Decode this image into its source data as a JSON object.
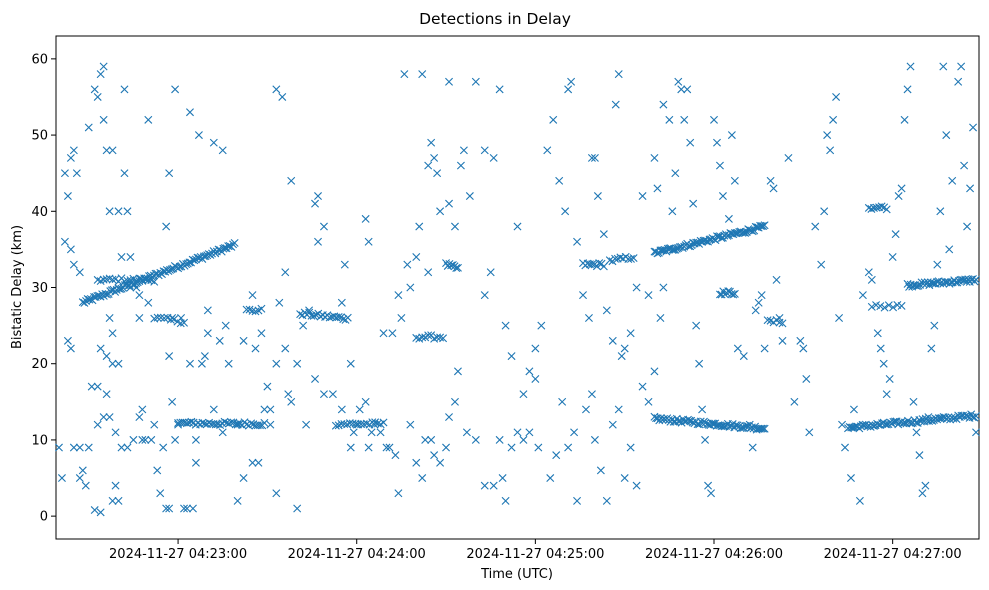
{
  "chart_data": {
    "type": "scatter",
    "title": "Detections in Delay",
    "xlabel": "Time (UTC)",
    "ylabel": "Bistatic Delay (km)",
    "marker": "x",
    "color": "#1f77b4",
    "grid": false,
    "xlim_seconds": [
      -41,
      269
    ],
    "ylim": [
      -3,
      63
    ],
    "x_ticks": [
      {
        "seconds": 0,
        "label": "2024-11-27 04:23:00"
      },
      {
        "seconds": 60,
        "label": "2024-11-27 04:24:00"
      },
      {
        "seconds": 120,
        "label": "2024-11-27 04:25:00"
      },
      {
        "seconds": 180,
        "label": "2024-11-27 04:26:00"
      },
      {
        "seconds": 240,
        "label": "2024-11-27 04:27:00"
      }
    ],
    "y_ticks": [
      0,
      10,
      20,
      30,
      40,
      50,
      60
    ],
    "tracks": [
      {
        "t0": -32,
        "t1": 19,
        "d0": 28,
        "d1": 35.6,
        "n": 95
      },
      {
        "t0": -27,
        "t1": -8,
        "d0": 31,
        "d1": 31,
        "n": 20
      },
      {
        "t0": -8,
        "t1": 2,
        "d0": 26,
        "d1": 25.5,
        "n": 10
      },
      {
        "t0": 0,
        "t1": 29,
        "d0": 12.2,
        "d1": 12.1,
        "n": 40
      },
      {
        "t0": 23,
        "t1": 28,
        "d0": 27,
        "d1": 27,
        "n": 6
      },
      {
        "t0": 41,
        "t1": 57,
        "d0": 26.6,
        "d1": 25.9,
        "n": 22
      },
      {
        "t0": 53,
        "t1": 69,
        "d0": 12.1,
        "d1": 12.1,
        "n": 18
      },
      {
        "t0": 80,
        "t1": 89,
        "d0": 23.5,
        "d1": 23.5,
        "n": 10
      },
      {
        "t0": 90,
        "t1": 94,
        "d0": 33,
        "d1": 32.5,
        "n": 8
      },
      {
        "t0": 136,
        "t1": 143,
        "d0": 33,
        "d1": 33,
        "n": 10
      },
      {
        "t0": 145,
        "t1": 153,
        "d0": 33.5,
        "d1": 34,
        "n": 10
      },
      {
        "t0": 160,
        "t1": 197,
        "d0": 34.5,
        "d1": 38,
        "n": 75
      },
      {
        "t0": 160,
        "t1": 197,
        "d0": 12.8,
        "d1": 11.5,
        "n": 70
      },
      {
        "t0": 182,
        "t1": 187,
        "d0": 29.3,
        "d1": 29.3,
        "n": 10
      },
      {
        "t0": 198,
        "t1": 203,
        "d0": 25.5,
        "d1": 25.5,
        "n": 6
      },
      {
        "t0": 225,
        "t1": 268,
        "d0": 11.6,
        "d1": 13.2,
        "n": 80
      },
      {
        "t0": 232,
        "t1": 238,
        "d0": 40.5,
        "d1": 40.5,
        "n": 8
      },
      {
        "t0": 245,
        "t1": 268,
        "d0": 30.3,
        "d1": 31,
        "n": 45
      },
      {
        "t0": 233,
        "t1": 243,
        "d0": 27.5,
        "d1": 27.5,
        "n": 8
      }
    ],
    "points": [
      [
        -38,
        36
      ],
      [
        -38,
        45
      ],
      [
        -36,
        47
      ],
      [
        -35,
        48
      ],
      [
        -34,
        45
      ],
      [
        -37,
        42
      ],
      [
        -36,
        35
      ],
      [
        -35,
        33
      ],
      [
        -33,
        32
      ],
      [
        -30,
        51
      ],
      [
        -28,
        56
      ],
      [
        -26,
        58
      ],
      [
        -25,
        59
      ],
      [
        -27,
        55
      ],
      [
        -25,
        52
      ],
      [
        -24,
        48
      ],
      [
        -22,
        48
      ],
      [
        -23,
        40
      ],
      [
        -20,
        40
      ],
      [
        -17,
        40
      ],
      [
        -18,
        45
      ],
      [
        -18,
        56
      ],
      [
        -10,
        52
      ],
      [
        4,
        53
      ],
      [
        7,
        50
      ],
      [
        12,
        49
      ],
      [
        15,
        48
      ],
      [
        -1,
        56
      ],
      [
        -3,
        45
      ],
      [
        -4,
        38
      ],
      [
        -37,
        23
      ],
      [
        -36,
        22
      ],
      [
        -35,
        9
      ],
      [
        -33,
        9
      ],
      [
        -31,
        4
      ],
      [
        -29,
        17
      ],
      [
        -27,
        17
      ],
      [
        -26,
        22
      ],
      [
        -24,
        21
      ],
      [
        -22,
        24
      ],
      [
        -22,
        20
      ],
      [
        -20,
        20
      ],
      [
        -24,
        16
      ],
      [
        -23,
        13
      ],
      [
        -21,
        11
      ],
      [
        -19,
        9
      ],
      [
        -17,
        9
      ],
      [
        -21,
        4
      ],
      [
        -22,
        2
      ],
      [
        -20,
        2
      ],
      [
        -28,
        0.8
      ],
      [
        -26,
        0.5
      ],
      [
        -13,
        13
      ],
      [
        -12,
        10
      ],
      [
        -11,
        10
      ],
      [
        -15,
        10
      ],
      [
        -8,
        12
      ],
      [
        -6,
        3
      ],
      [
        -4,
        1
      ],
      [
        -3,
        1
      ],
      [
        -2,
        15
      ],
      [
        -1,
        10
      ],
      [
        2,
        1
      ],
      [
        3,
        1
      ],
      [
        5,
        1
      ],
      [
        6,
        7
      ],
      [
        10,
        27
      ],
      [
        10,
        24
      ],
      [
        16,
        25
      ],
      [
        14,
        23
      ],
      [
        8,
        20
      ],
      [
        4,
        20
      ],
      [
        -14,
        30
      ],
      [
        -16,
        30
      ],
      [
        -13,
        29
      ],
      [
        -10,
        28
      ],
      [
        20,
        12
      ],
      [
        25,
        29
      ],
      [
        28,
        24
      ],
      [
        30,
        17
      ],
      [
        31,
        14
      ],
      [
        27,
        7
      ],
      [
        25,
        7
      ],
      [
        22,
        5
      ],
      [
        20,
        2
      ],
      [
        36,
        22
      ],
      [
        37,
        16
      ],
      [
        33,
        3
      ],
      [
        40,
        1
      ],
      [
        35,
        55
      ],
      [
        33,
        56
      ],
      [
        38,
        44
      ],
      [
        46,
        41
      ],
      [
        47,
        42
      ],
      [
        43,
        12
      ],
      [
        47,
        36
      ],
      [
        49,
        38
      ],
      [
        56,
        33
      ],
      [
        55,
        28
      ],
      [
        58,
        20
      ],
      [
        61,
        14
      ],
      [
        63,
        39
      ],
      [
        64,
        36
      ],
      [
        59,
        11
      ],
      [
        64,
        9
      ],
      [
        65,
        11
      ],
      [
        70,
        9
      ],
      [
        69,
        24
      ],
      [
        72,
        24
      ],
      [
        74,
        29
      ],
      [
        78,
        30
      ],
      [
        75,
        26
      ],
      [
        77,
        33
      ],
      [
        81,
        38
      ],
      [
        76,
        58
      ],
      [
        82,
        58
      ],
      [
        80,
        34
      ],
      [
        84,
        32
      ],
      [
        84,
        46
      ],
      [
        86,
        47
      ],
      [
        85,
        49
      ],
      [
        87,
        45
      ],
      [
        88,
        40
      ],
      [
        91,
        41
      ],
      [
        93,
        38
      ],
      [
        95,
        46
      ],
      [
        96,
        48
      ],
      [
        91,
        57
      ],
      [
        100,
        57
      ],
      [
        108,
        56
      ],
      [
        106,
        47
      ],
      [
        103,
        48
      ],
      [
        98,
        42
      ],
      [
        74,
        3
      ],
      [
        78,
        12
      ],
      [
        80,
        7
      ],
      [
        82,
        5
      ],
      [
        83,
        10
      ],
      [
        85,
        10
      ],
      [
        86,
        8
      ],
      [
        88,
        7
      ],
      [
        90,
        9
      ],
      [
        91,
        13
      ],
      [
        93,
        15
      ],
      [
        94,
        19
      ],
      [
        97,
        11
      ],
      [
        100,
        10
      ],
      [
        103,
        4
      ],
      [
        106,
        4
      ],
      [
        108,
        10
      ],
      [
        109,
        5
      ],
      [
        110,
        2
      ],
      [
        112,
        9
      ],
      [
        114,
        11
      ],
      [
        116,
        10
      ],
      [
        118,
        11
      ],
      [
        120,
        18
      ],
      [
        121,
        9
      ],
      [
        125,
        5
      ],
      [
        127,
        8
      ],
      [
        129,
        15
      ],
      [
        131,
        9
      ],
      [
        133,
        11
      ],
      [
        134,
        2
      ],
      [
        137,
        14
      ],
      [
        139,
        16
      ],
      [
        140,
        10
      ],
      [
        142,
        6
      ],
      [
        144,
        2
      ],
      [
        146,
        12
      ],
      [
        148,
        14
      ],
      [
        150,
        5
      ],
      [
        152,
        9
      ],
      [
        154,
        4
      ],
      [
        156,
        17
      ],
      [
        158,
        15
      ],
      [
        160,
        19
      ],
      [
        162,
        26
      ],
      [
        163,
        30
      ],
      [
        103,
        29
      ],
      [
        105,
        32
      ],
      [
        110,
        25
      ],
      [
        112,
        21
      ],
      [
        114,
        38
      ],
      [
        116,
        16
      ],
      [
        118,
        19
      ],
      [
        120,
        22
      ],
      [
        122,
        25
      ],
      [
        124,
        48
      ],
      [
        126,
        52
      ],
      [
        128,
        44
      ],
      [
        130,
        40
      ],
      [
        131,
        56
      ],
      [
        132,
        57
      ],
      [
        134,
        36
      ],
      [
        136,
        29
      ],
      [
        138,
        26
      ],
      [
        139,
        47
      ],
      [
        140,
        47
      ],
      [
        141,
        42
      ],
      [
        143,
        37
      ],
      [
        144,
        27
      ],
      [
        146,
        23
      ],
      [
        147,
        54
      ],
      [
        148,
        58
      ],
      [
        149,
        21
      ],
      [
        150,
        22
      ],
      [
        152,
        24
      ],
      [
        154,
        30
      ],
      [
        156,
        42
      ],
      [
        158,
        29
      ],
      [
        160,
        47
      ],
      [
        161,
        43
      ],
      [
        163,
        54
      ],
      [
        165,
        52
      ],
      [
        166,
        40
      ],
      [
        167,
        45
      ],
      [
        168,
        57
      ],
      [
        169,
        56
      ],
      [
        170,
        52
      ],
      [
        171,
        56
      ],
      [
        172,
        49
      ],
      [
        173,
        41
      ],
      [
        174,
        25
      ],
      [
        175,
        20
      ],
      [
        176,
        14
      ],
      [
        177,
        10
      ],
      [
        178,
        4
      ],
      [
        179,
        3
      ],
      [
        180,
        52
      ],
      [
        181,
        49
      ],
      [
        182,
        46
      ],
      [
        183,
        42
      ],
      [
        185,
        39
      ],
      [
        186,
        50
      ],
      [
        187,
        44
      ],
      [
        188,
        22
      ],
      [
        190,
        21
      ],
      [
        192,
        12
      ],
      [
        193,
        9
      ],
      [
        194,
        27
      ],
      [
        195,
        28
      ],
      [
        196,
        29
      ],
      [
        197,
        22
      ],
      [
        199,
        44
      ],
      [
        200,
        43
      ],
      [
        201,
        31
      ],
      [
        202,
        26
      ],
      [
        203,
        23
      ],
      [
        205,
        47
      ],
      [
        207,
        15
      ],
      [
        209,
        23
      ],
      [
        210,
        22
      ],
      [
        211,
        18
      ],
      [
        212,
        11
      ],
      [
        214,
        38
      ],
      [
        216,
        33
      ],
      [
        217,
        40
      ],
      [
        218,
        50
      ],
      [
        219,
        48
      ],
      [
        220,
        52
      ],
      [
        221,
        55
      ],
      [
        222,
        26
      ],
      [
        223,
        12
      ],
      [
        224,
        9
      ],
      [
        226,
        5
      ],
      [
        227,
        14
      ],
      [
        229,
        2
      ],
      [
        230,
        29
      ],
      [
        232,
        32
      ],
      [
        233,
        31
      ],
      [
        235,
        24
      ],
      [
        236,
        22
      ],
      [
        237,
        20
      ],
      [
        238,
        16
      ],
      [
        239,
        18
      ],
      [
        240,
        34
      ],
      [
        241,
        37
      ],
      [
        242,
        42
      ],
      [
        243,
        43
      ],
      [
        244,
        52
      ],
      [
        245,
        56
      ],
      [
        246,
        59
      ],
      [
        247,
        15
      ],
      [
        248,
        11
      ],
      [
        249,
        8
      ],
      [
        250,
        3
      ],
      [
        251,
        4
      ],
      [
        252,
        13
      ],
      [
        253,
        22
      ],
      [
        254,
        25
      ],
      [
        255,
        33
      ],
      [
        256,
        40
      ],
      [
        257,
        59
      ],
      [
        258,
        50
      ],
      [
        259,
        35
      ],
      [
        260,
        44
      ],
      [
        262,
        57
      ],
      [
        263,
        59
      ],
      [
        264,
        46
      ],
      [
        265,
        38
      ],
      [
        266,
        43
      ],
      [
        267,
        51
      ],
      [
        268,
        11
      ],
      [
        -40,
        9
      ],
      [
        -39,
        5
      ],
      [
        -33,
        5
      ],
      [
        -32,
        6
      ],
      [
        -30,
        9
      ],
      [
        -27,
        12
      ],
      [
        -25,
        13
      ],
      [
        -23,
        26
      ],
      [
        -19,
        34
      ],
      [
        -16,
        34
      ],
      [
        -13,
        26
      ],
      [
        -12,
        14
      ],
      [
        -9,
        10
      ],
      [
        -7,
        6
      ],
      [
        -5,
        9
      ],
      [
        -3,
        21
      ],
      [
        -2,
        26
      ],
      [
        0,
        12
      ],
      [
        1,
        26
      ],
      [
        6,
        10
      ],
      [
        9,
        21
      ],
      [
        12,
        14
      ],
      [
        15,
        11
      ],
      [
        17,
        20
      ],
      [
        22,
        23
      ],
      [
        26,
        22
      ],
      [
        29,
        14
      ],
      [
        31,
        12
      ],
      [
        33,
        20
      ],
      [
        34,
        28
      ],
      [
        36,
        32
      ],
      [
        38,
        15
      ],
      [
        40,
        20
      ],
      [
        42,
        25
      ],
      [
        44,
        27
      ],
      [
        46,
        18
      ],
      [
        49,
        16
      ],
      [
        52,
        16
      ],
      [
        55,
        14
      ],
      [
        58,
        9
      ],
      [
        60,
        12
      ],
      [
        63,
        15
      ],
      [
        66,
        12
      ],
      [
        68,
        11
      ],
      [
        71,
        9
      ],
      [
        73,
        8
      ]
    ]
  }
}
